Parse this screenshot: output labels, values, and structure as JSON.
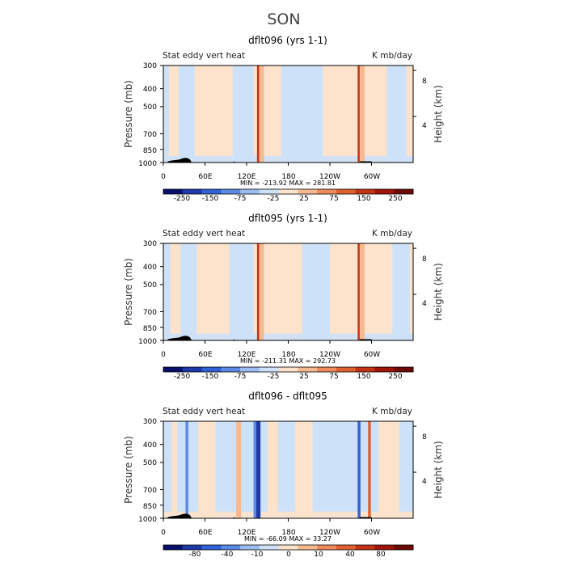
{
  "figure": {
    "title": "SON"
  },
  "colors": {
    "palette": [
      "#08106e",
      "#1d3aa8",
      "#2f62d4",
      "#5a8ae6",
      "#9bbdf2",
      "#cde1f8",
      "#fde3cc",
      "#f6b990",
      "#ee8a5c",
      "#e0602f",
      "#c43314",
      "#a0140a",
      "#6e0a05"
    ]
  },
  "chart_data": [
    {
      "type": "heatmap",
      "title": "dflt096 (yrs 1-1)",
      "left_label": "Stat eddy vert heat",
      "right_label": "K mb/day",
      "ylabel": "Pressure (mb)",
      "y2label": "Height (km)",
      "xticks": [
        "0",
        "60E",
        "120E",
        "180",
        "120W",
        "60W"
      ],
      "yticks": [
        "300",
        "400",
        "500",
        "700",
        "850",
        "1000"
      ],
      "y2ticks": [
        "8",
        "4"
      ],
      "x_range": [
        "0",
        "360"
      ],
      "y_range": [
        1000,
        300
      ],
      "stats": "MIN = -213.92   MAX = 281.81",
      "colorbar_labels": [
        "-250",
        "-150",
        "-75",
        "-25",
        "25",
        "75",
        "150",
        "250"
      ],
      "dominant_sign": "positive",
      "bands": [
        {
          "lon": [
            0,
            8
          ],
          "v": -1
        },
        {
          "lon": [
            22,
            45
          ],
          "v": -1
        },
        {
          "lon": [
            100,
            130
          ],
          "v": -1
        },
        {
          "lon": [
            135,
            138
          ],
          "v": 5
        },
        {
          "lon": [
            138,
            145
          ],
          "v": 2
        },
        {
          "lon": [
            170,
            230
          ],
          "v": -1
        },
        {
          "lon": [
            280,
            283
          ],
          "v": 5
        },
        {
          "lon": [
            283,
            290
          ],
          "v": 2
        },
        {
          "lon": [
            322,
            350
          ],
          "v": -1
        }
      ]
    },
    {
      "type": "heatmap",
      "title": "dflt095 (yrs 1-1)",
      "left_label": "Stat eddy vert heat",
      "right_label": "K mb/day",
      "ylabel": "Pressure (mb)",
      "y2label": "Height (km)",
      "xticks": [
        "0",
        "60E",
        "120E",
        "180",
        "120W",
        "60W"
      ],
      "yticks": [
        "300",
        "400",
        "500",
        "700",
        "850",
        "1000"
      ],
      "y2ticks": [
        "8",
        "4"
      ],
      "x_range": [
        "0",
        "360"
      ],
      "y_range": [
        1000,
        300
      ],
      "stats": "MIN = -211.31   MAX = 292.73",
      "colorbar_labels": [
        "-250",
        "-150",
        "-75",
        "-25",
        "25",
        "75",
        "150",
        "250"
      ],
      "dominant_sign": "positive",
      "bands": [
        {
          "lon": [
            0,
            10
          ],
          "v": -1
        },
        {
          "lon": [
            25,
            48
          ],
          "v": -1
        },
        {
          "lon": [
            95,
            130
          ],
          "v": -1
        },
        {
          "lon": [
            135,
            138
          ],
          "v": 5
        },
        {
          "lon": [
            138,
            145
          ],
          "v": 2
        },
        {
          "lon": [
            200,
            240
          ],
          "v": -1
        },
        {
          "lon": [
            280,
            283
          ],
          "v": 5
        },
        {
          "lon": [
            283,
            290
          ],
          "v": 2
        },
        {
          "lon": [
            330,
            355
          ],
          "v": -1
        }
      ]
    },
    {
      "type": "heatmap",
      "title": "dflt096 - dflt095",
      "left_label": "Stat eddy vert heat",
      "right_label": "K mb/day",
      "ylabel": "Pressure (mb)",
      "y2label": "Height (km)",
      "xticks": [
        "0",
        "60E",
        "120E",
        "180",
        "120W",
        "60W"
      ],
      "yticks": [
        "300",
        "400",
        "500",
        "700",
        "850",
        "1000"
      ],
      "y2ticks": [
        "8",
        "4"
      ],
      "x_range": [
        "0",
        "360"
      ],
      "y_range": [
        1000,
        300
      ],
      "stats": "MIN = -66.09   MAX =  33.27",
      "colorbar_labels": [
        "-80",
        "-40",
        "-10",
        "0",
        "10",
        "40",
        "80"
      ],
      "dominant_sign": "negative",
      "bands": [
        {
          "lon": [
            12,
            20
          ],
          "v": 1
        },
        {
          "lon": [
            32,
            36
          ],
          "v": -3
        },
        {
          "lon": [
            50,
            75
          ],
          "v": 1
        },
        {
          "lon": [
            105,
            112
          ],
          "v": 2
        },
        {
          "lon": [
            130,
            134
          ],
          "v": -3
        },
        {
          "lon": [
            134,
            140
          ],
          "v": -5
        },
        {
          "lon": [
            150,
            165
          ],
          "v": 1
        },
        {
          "lon": [
            190,
            215
          ],
          "v": 1
        },
        {
          "lon": [
            280,
            284
          ],
          "v": -4
        },
        {
          "lon": [
            295,
            299
          ],
          "v": 4
        },
        {
          "lon": [
            310,
            340
          ],
          "v": 1
        }
      ]
    }
  ]
}
